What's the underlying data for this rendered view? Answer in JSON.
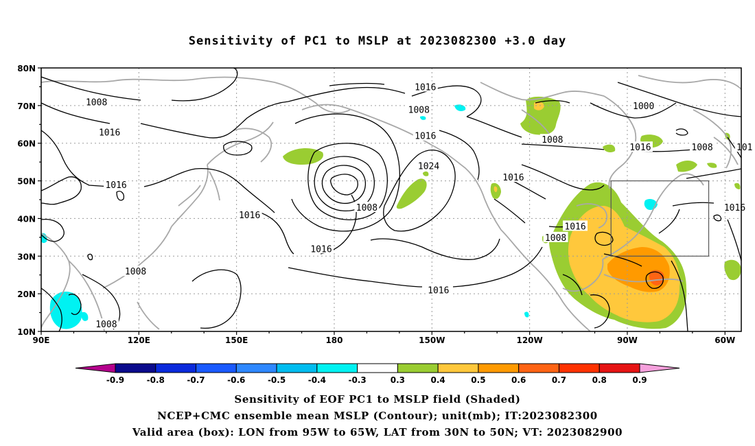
{
  "title": "Sensitivity of PC1 to MSLP at 2023082300 +3.0 day",
  "lat_labels": [
    "80N",
    "70N",
    "60N",
    "50N",
    "40N",
    "30N",
    "20N",
    "10N"
  ],
  "lon_labels": [
    "90E",
    "120E",
    "150E",
    "180",
    "150W",
    "120W",
    "90W",
    "60W"
  ],
  "contour_labels": [
    {
      "text": "1016",
      "lon": -152,
      "lat": 75
    },
    {
      "text": "1008",
      "lon": 107,
      "lat": 71
    },
    {
      "text": "1008",
      "lon": -154,
      "lat": 69
    },
    {
      "text": "1000",
      "lon": -85,
      "lat": 70
    },
    {
      "text": "1016",
      "lon": 111,
      "lat": 63
    },
    {
      "text": "1016",
      "lon": -152,
      "lat": 62
    },
    {
      "text": "1008",
      "lon": -113,
      "lat": 61
    },
    {
      "text": "1016",
      "lon": -86,
      "lat": 59
    },
    {
      "text": "1008",
      "lon": -67,
      "lat": 59
    },
    {
      "text": "101",
      "lon": -54,
      "lat": 59
    },
    {
      "text": "1024",
      "lon": -151,
      "lat": 54
    },
    {
      "text": "1016",
      "lon": -125,
      "lat": 51
    },
    {
      "text": "1016",
      "lon": 113,
      "lat": 49
    },
    {
      "text": "1008",
      "lon": -170,
      "lat": 43
    },
    {
      "text": "1016",
      "lon": 154,
      "lat": 41
    },
    {
      "text": "1016",
      "lon": -57,
      "lat": 43
    },
    {
      "text": "1016",
      "lon": -106,
      "lat": 38
    },
    {
      "text": "1008",
      "lon": -112,
      "lat": 35
    },
    {
      "text": "1016",
      "lon": 176,
      "lat": 32
    },
    {
      "text": "1008",
      "lon": 119,
      "lat": 26
    },
    {
      "text": "1016",
      "lon": -148,
      "lat": 21
    },
    {
      "text": "1008",
      "lon": 110,
      "lat": 12
    }
  ],
  "colorbar": {
    "labels": [
      "-0.9",
      "-0.8",
      "-0.7",
      "-0.6",
      "-0.5",
      "-0.4",
      "-0.3",
      "0.3",
      "0.4",
      "0.5",
      "0.6",
      "0.7",
      "0.8",
      "0.9"
    ],
    "colors": [
      "#0a0a8c",
      "#0a2adc",
      "#1a5aff",
      "#2e88ff",
      "#00bdf0",
      "#00f2f2",
      "#ffffff",
      "#9acd32",
      "#ffc83c",
      "#ff9a00",
      "#ff6414",
      "#ff3200",
      "#e61414"
    ],
    "left_end_color": "#b4008c",
    "right_end_color": "#f5a0dc"
  },
  "captions": [
    "Sensitivity of EOF PC1 to MSLP field (Shaded)",
    "NCEP+CMC ensemble mean MSLP (Contour); unit(mb); IT:2023082300",
    "Valid area (box): LON from 95W to 65W, LAT from 30N to 50N; VT: 2023082900"
  ],
  "valid_box": {
    "lon_min": -95,
    "lon_max": -65,
    "lat_min": 30,
    "lat_max": 50
  },
  "colors": {
    "contour": "#000000",
    "coast": "#a8a8a8",
    "grid": "#9a9a9a"
  }
}
